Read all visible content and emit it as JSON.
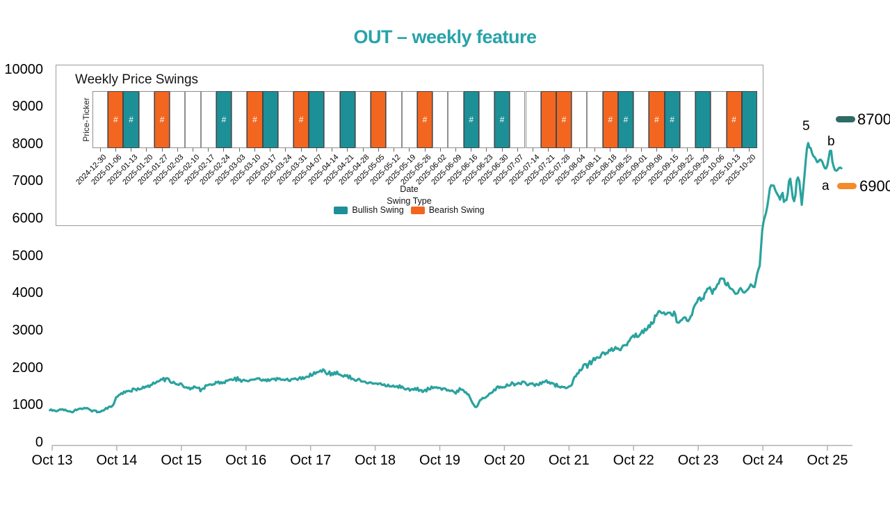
{
  "title": {
    "text": "OUT – weekly feature"
  },
  "colors": {
    "title": "#27a3a9",
    "line": "#2aa29e",
    "bullish": "#1d8f96",
    "bearish": "#f2661f",
    "pill_b": "#2f6b64",
    "pill_a": "#f58a28",
    "axis": "#b0b0b0"
  },
  "annotations": {
    "peak_label": "5",
    "b_letter": "b",
    "b_value": "8700",
    "a_letter": "a",
    "a_value": "6900"
  },
  "chart_data": [
    {
      "type": "line",
      "name": "price-series",
      "title": "OUT – weekly feature",
      "xlabel": "",
      "ylabel": "",
      "grid": false,
      "x_ticks": [
        "Oct 13",
        "Oct 14",
        "Oct 15",
        "Oct 16",
        "Oct 17",
        "Oct 18",
        "Oct 19",
        "Oct 20",
        "Oct 21",
        "Oct 22",
        "Oct 23",
        "Oct 24",
        "Oct 25"
      ],
      "y_ticks": [
        0,
        1000,
        2000,
        3000,
        4000,
        5000,
        6000,
        7000,
        8000,
        9000,
        10000
      ],
      "ylim": [
        0,
        10000
      ],
      "x_note": "x stored as fraction of axis: 0 = Oct 13 tick, 1 = Oct 25 tick",
      "render_texture": {
        "samples": 620,
        "amp_frac": 0.026,
        "amp_cap": 55,
        "damp_after": 0.905,
        "damp_factor": 0.45
      },
      "points": [
        [
          -0.003,
          870
        ],
        [
          0,
          880
        ],
        [
          0.006,
          840
        ],
        [
          0.012,
          905
        ],
        [
          0.019,
          860
        ],
        [
          0.026,
          830
        ],
        [
          0.034,
          905
        ],
        [
          0.043,
          930
        ],
        [
          0.052,
          850
        ],
        [
          0.061,
          825
        ],
        [
          0.069,
          910
        ],
        [
          0.078,
          1010
        ],
        [
          0.0833,
          1250
        ],
        [
          0.09,
          1320
        ],
        [
          0.1,
          1400
        ],
        [
          0.11,
          1430
        ],
        [
          0.118,
          1490
        ],
        [
          0.127,
          1560
        ],
        [
          0.136,
          1640
        ],
        [
          0.148,
          1705
        ],
        [
          0.155,
          1630
        ],
        [
          0.161,
          1560
        ],
        [
          0.167,
          1590
        ],
        [
          0.172,
          1500
        ],
        [
          0.178,
          1430
        ],
        [
          0.185,
          1510
        ],
        [
          0.192,
          1400
        ],
        [
          0.2,
          1545
        ],
        [
          0.21,
          1580
        ],
        [
          0.221,
          1625
        ],
        [
          0.232,
          1665
        ],
        [
          0.24,
          1705
        ],
        [
          0.246,
          1660
        ],
        [
          0.25,
          1655
        ],
        [
          0.258,
          1700
        ],
        [
          0.266,
          1725
        ],
        [
          0.273,
          1665
        ],
        [
          0.281,
          1695
        ],
        [
          0.291,
          1715
        ],
        [
          0.301,
          1685
        ],
        [
          0.311,
          1705
        ],
        [
          0.322,
          1735
        ],
        [
          0.3333,
          1800
        ],
        [
          0.341,
          1855
        ],
        [
          0.347,
          1920
        ],
        [
          0.353,
          1885
        ],
        [
          0.36,
          1850
        ],
        [
          0.366,
          1875
        ],
        [
          0.373,
          1805
        ],
        [
          0.381,
          1765
        ],
        [
          0.391,
          1690
        ],
        [
          0.399,
          1645
        ],
        [
          0.408,
          1605
        ],
        [
          0.4167,
          1580
        ],
        [
          0.426,
          1555
        ],
        [
          0.434,
          1505
        ],
        [
          0.441,
          1535
        ],
        [
          0.449,
          1485
        ],
        [
          0.456,
          1445
        ],
        [
          0.464,
          1405
        ],
        [
          0.471,
          1445
        ],
        [
          0.478,
          1365
        ],
        [
          0.486,
          1445
        ],
        [
          0.494,
          1475
        ],
        [
          0.5,
          1450
        ],
        [
          0.509,
          1420
        ],
        [
          0.516,
          1385
        ],
        [
          0.521,
          1340
        ],
        [
          0.526,
          1425
        ],
        [
          0.531,
          1375
        ],
        [
          0.536,
          1305
        ],
        [
          0.54,
          1185
        ],
        [
          0.5435,
          1005
        ],
        [
          0.547,
          950
        ],
        [
          0.551,
          1125
        ],
        [
          0.557,
          1215
        ],
        [
          0.564,
          1285
        ],
        [
          0.571,
          1405
        ],
        [
          0.578,
          1510
        ],
        [
          0.5833,
          1520
        ],
        [
          0.59,
          1575
        ],
        [
          0.598,
          1545
        ],
        [
          0.606,
          1610
        ],
        [
          0.614,
          1570
        ],
        [
          0.621,
          1545
        ],
        [
          0.629,
          1560
        ],
        [
          0.634,
          1650
        ],
        [
          0.641,
          1600
        ],
        [
          0.648,
          1545
        ],
        [
          0.655,
          1510
        ],
        [
          0.6615,
          1465
        ],
        [
          0.667,
          1505
        ],
        [
          0.67,
          1560
        ],
        [
          0.6725,
          1690
        ],
        [
          0.676,
          1810
        ],
        [
          0.6795,
          1905
        ],
        [
          0.683,
          2005
        ],
        [
          0.687,
          2100
        ],
        [
          0.691,
          2060
        ],
        [
          0.695,
          2150
        ],
        [
          0.7,
          2250
        ],
        [
          0.704,
          2305
        ],
        [
          0.709,
          2380
        ],
        [
          0.713,
          2350
        ],
        [
          0.718,
          2450
        ],
        [
          0.722,
          2505
        ],
        [
          0.727,
          2550
        ],
        [
          0.731,
          2505
        ],
        [
          0.736,
          2600
        ],
        [
          0.74,
          2630
        ],
        [
          0.745,
          2700
        ],
        [
          0.749,
          2855
        ],
        [
          0.758,
          2910
        ],
        [
          0.767,
          3040
        ],
        [
          0.776,
          3280
        ],
        [
          0.78,
          3440
        ],
        [
          0.785,
          3510
        ],
        [
          0.789,
          3480
        ],
        [
          0.794,
          3530
        ],
        [
          0.798,
          3440
        ],
        [
          0.803,
          3480
        ],
        [
          0.807,
          3200
        ],
        [
          0.812,
          3260
        ],
        [
          0.816,
          3330
        ],
        [
          0.821,
          3240
        ],
        [
          0.8265,
          3500
        ],
        [
          0.83,
          3760
        ],
        [
          0.834,
          3910
        ],
        [
          0.839,
          3820
        ],
        [
          0.843,
          4040
        ],
        [
          0.848,
          4190
        ],
        [
          0.852,
          3980
        ],
        [
          0.857,
          4260
        ],
        [
          0.861,
          4320
        ],
        [
          0.866,
          4380
        ],
        [
          0.87,
          4230
        ],
        [
          0.874,
          4190
        ],
        [
          0.879,
          4100
        ],
        [
          0.883,
          4000
        ],
        [
          0.888,
          4100
        ],
        [
          0.892,
          3980
        ],
        [
          0.897,
          4100
        ],
        [
          0.901,
          4290
        ],
        [
          0.906,
          4140
        ],
        [
          0.91,
          4570
        ],
        [
          0.9125,
          4700
        ],
        [
          0.9145,
          5300
        ],
        [
          0.916,
          5700
        ],
        [
          0.9175,
          5930
        ],
        [
          0.919,
          6045
        ],
        [
          0.922,
          6270
        ],
        [
          0.926,
          6830
        ],
        [
          0.93,
          6925
        ],
        [
          0.933,
          6740
        ],
        [
          0.935,
          6680
        ],
        [
          0.939,
          6520
        ],
        [
          0.942,
          6740
        ],
        [
          0.944,
          6430
        ],
        [
          0.948,
          6560
        ],
        [
          0.951,
          7110
        ],
        [
          0.9525,
          7080
        ],
        [
          0.955,
          6560
        ],
        [
          0.958,
          6430
        ],
        [
          0.961,
          7150
        ],
        [
          0.964,
          6990
        ],
        [
          0.967,
          6370
        ],
        [
          0.97,
          7020
        ],
        [
          0.973,
          7860
        ],
        [
          0.975,
          8010
        ],
        [
          0.978,
          7900
        ],
        [
          0.979,
          7830
        ],
        [
          0.982,
          7670
        ],
        [
          0.985,
          7580
        ],
        [
          0.988,
          7490
        ],
        [
          0.991,
          7620
        ],
        [
          0.993,
          7530
        ],
        [
          0.996,
          7390
        ],
        [
          0.9975,
          7300
        ],
        [
          1,
          7430
        ],
        [
          1.0025,
          7730
        ],
        [
          1.004,
          7950
        ],
        [
          1.007,
          7420
        ],
        [
          1.009,
          7360
        ],
        [
          1.012,
          7260
        ],
        [
          1.015,
          7390
        ],
        [
          1.018,
          7330
        ]
      ],
      "annotations": [
        {
          "label": "5",
          "y": 8100,
          "note": "marks peak"
        },
        {
          "label": "b",
          "value": 8700,
          "color_key": "pill_b"
        },
        {
          "label": "a",
          "value": 6900,
          "color_key": "pill_a"
        }
      ]
    },
    {
      "type": "heatmap",
      "title": "Weekly Price Swings",
      "xlabel": "Date",
      "ylabel": "Price-Ticker",
      "legend_title": "Swing Type",
      "legend": [
        "Bullish Swing",
        "Bearish Swing"
      ],
      "mark_glyph": "#",
      "weeks": [
        {
          "date": "2024-12-30",
          "swing": "none",
          "hash_mark": false
        },
        {
          "date": "2025-01-06",
          "swing": "bearish",
          "hash_mark": true
        },
        {
          "date": "2025-01-13",
          "swing": "bullish",
          "hash_mark": true
        },
        {
          "date": "2025-01-20",
          "swing": "none",
          "hash_mark": false
        },
        {
          "date": "2025-01-27",
          "swing": "bearish",
          "hash_mark": true
        },
        {
          "date": "2025-02-03",
          "swing": "none",
          "hash_mark": false
        },
        {
          "date": "2025-02-10",
          "swing": "none",
          "hash_mark": false
        },
        {
          "date": "2025-02-17",
          "swing": "none",
          "hash_mark": false
        },
        {
          "date": "2025-02-24",
          "swing": "bullish",
          "hash_mark": true
        },
        {
          "date": "2025-03-03",
          "swing": "none",
          "hash_mark": false
        },
        {
          "date": "2025-03-10",
          "swing": "bearish",
          "hash_mark": true
        },
        {
          "date": "2025-03-17",
          "swing": "bullish",
          "hash_mark": false
        },
        {
          "date": "2025-03-24",
          "swing": "none",
          "hash_mark": false
        },
        {
          "date": "2025-03-31",
          "swing": "bearish",
          "hash_mark": true
        },
        {
          "date": "2025-04-07",
          "swing": "bullish",
          "hash_mark": false
        },
        {
          "date": "2025-04-14",
          "swing": "none",
          "hash_mark": false
        },
        {
          "date": "2025-04-21",
          "swing": "bullish",
          "hash_mark": false
        },
        {
          "date": "2025-04-28",
          "swing": "none",
          "hash_mark": false
        },
        {
          "date": "2025-05-05",
          "swing": "bearish",
          "hash_mark": false
        },
        {
          "date": "2025-05-12",
          "swing": "none",
          "hash_mark": false
        },
        {
          "date": "2025-05-19",
          "swing": "none",
          "hash_mark": false
        },
        {
          "date": "2025-05-26",
          "swing": "bearish",
          "hash_mark": true
        },
        {
          "date": "2025-06-02",
          "swing": "none",
          "hash_mark": false
        },
        {
          "date": "2025-06-09",
          "swing": "none",
          "hash_mark": false
        },
        {
          "date": "2025-06-16",
          "swing": "bullish",
          "hash_mark": true
        },
        {
          "date": "2025-06-23",
          "swing": "none",
          "hash_mark": false
        },
        {
          "date": "2025-06-30",
          "swing": "bullish",
          "hash_mark": true
        },
        {
          "date": "2025-07-07",
          "swing": "none",
          "hash_mark": false
        },
        {
          "date": "2025-07-14",
          "swing": "none",
          "hash_mark": false
        },
        {
          "date": "2025-07-21",
          "swing": "bearish",
          "hash_mark": false
        },
        {
          "date": "2025-07-28",
          "swing": "bearish",
          "hash_mark": true
        },
        {
          "date": "2025-08-04",
          "swing": "none",
          "hash_mark": false
        },
        {
          "date": "2025-08-11",
          "swing": "none",
          "hash_mark": false
        },
        {
          "date": "2025-08-18",
          "swing": "bearish",
          "hash_mark": true
        },
        {
          "date": "2025-08-25",
          "swing": "bullish",
          "hash_mark": true
        },
        {
          "date": "2025-09-01",
          "swing": "none",
          "hash_mark": false
        },
        {
          "date": "2025-09-08",
          "swing": "bearish",
          "hash_mark": true
        },
        {
          "date": "2025-09-15",
          "swing": "bullish",
          "hash_mark": true
        },
        {
          "date": "2025-09-22",
          "swing": "none",
          "hash_mark": false
        },
        {
          "date": "2025-09-29",
          "swing": "bullish",
          "hash_mark": false
        },
        {
          "date": "2025-10-06",
          "swing": "none",
          "hash_mark": false
        },
        {
          "date": "2025-10-13",
          "swing": "bearish",
          "hash_mark": true
        },
        {
          "date": "2025-10-20",
          "swing": "bullish",
          "hash_mark": false
        }
      ]
    }
  ]
}
